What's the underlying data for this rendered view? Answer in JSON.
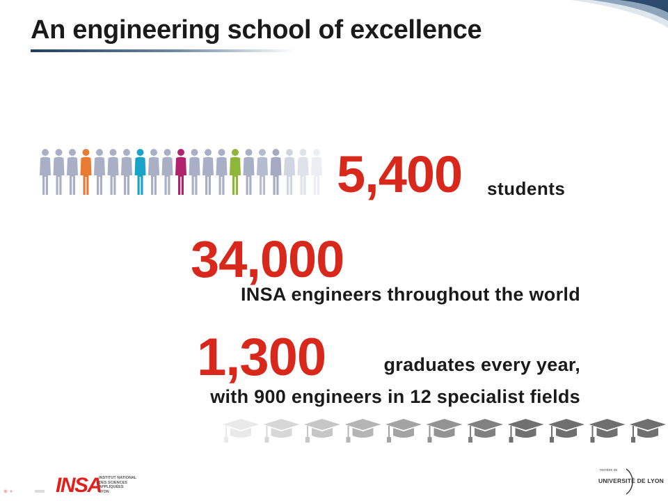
{
  "title": "An engineering school of excellence",
  "stats": [
    {
      "number": "5,400",
      "caption": "students"
    },
    {
      "number": "34,000",
      "caption": "INSA engineers throughout the world"
    },
    {
      "number": "1,300",
      "caption": "graduates every year,",
      "subcaption": "with 900 engineers in 12 specialist fields"
    }
  ],
  "footer": {
    "insa_logo": "INSA",
    "insa_lines": [
      "INSTITUT NATIONAL",
      "DES SCIENCES",
      "APPLIQUÉES",
      "LYON"
    ],
    "udl_member": "membre de",
    "udl_name": "UNIVERSITÉ DE LYON"
  },
  "colors": {
    "accent_red": "#d8281c",
    "text_dark": "#1a1a1a",
    "figure_grey": "#a9b0c6",
    "figure_orange": "#e87a32",
    "figure_teal": "#1aa3c8",
    "figure_magenta": "#b0246e",
    "figure_green": "#8fb53a",
    "figure_slate": "#7b83a6",
    "cap_grey": "#6f6f6f"
  }
}
